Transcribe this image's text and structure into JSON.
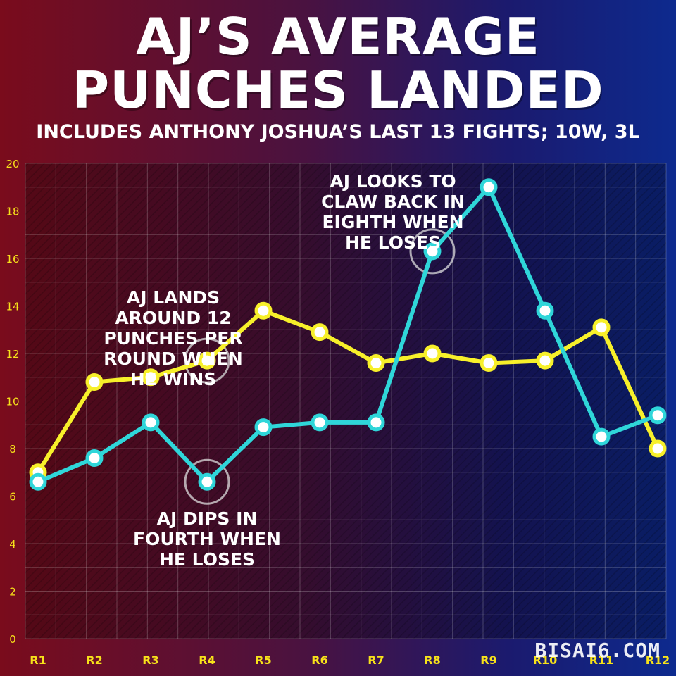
{
  "header": {
    "title_line1": "AJ’S AVERAGE",
    "title_line2": "PUNCHES LANDED",
    "subtitle": "INCLUDES ANTHONY JOSHUA’S LAST 13 FIGHTS; 10W, 3L"
  },
  "watermark": "BISAI6.COM",
  "colors": {
    "wins_line": "#f7f02a",
    "losses_line": "#2fd6d9",
    "text": "#ffffff",
    "tick_label": "#f7e21a"
  },
  "chart_data": {
    "type": "line",
    "categories": [
      "R1",
      "R2",
      "R3",
      "R4",
      "R5",
      "R6",
      "R7",
      "R8",
      "R9",
      "R10",
      "R11",
      "R12"
    ],
    "ylim": [
      0,
      20
    ],
    "yticks": [
      0,
      2,
      4,
      6,
      8,
      10,
      12,
      14,
      16,
      18,
      20
    ],
    "grid": true,
    "series": [
      {
        "key": "wins",
        "color": "#f7f02a",
        "values": [
          7.0,
          10.8,
          11.0,
          11.7,
          13.8,
          12.9,
          11.6,
          12.0,
          11.6,
          11.7,
          13.1,
          8.0
        ]
      },
      {
        "key": "losses",
        "color": "#2fd6d9",
        "values": [
          6.6,
          7.6,
          9.1,
          6.6,
          8.9,
          9.1,
          9.1,
          16.3,
          19.0,
          13.8,
          8.5,
          9.4
        ]
      }
    ],
    "highlights": [
      {
        "series": "wins",
        "index": 3
      },
      {
        "series": "losses",
        "index": 3
      },
      {
        "series": "losses",
        "index": 7
      }
    ],
    "annotations": [
      {
        "lines": [
          "AJ LANDS",
          "AROUND 12",
          "PUNCHES PER",
          "ROUND WHEN",
          "HE WINS"
        ],
        "anchor": {
          "cat": 2.4,
          "y": 14.1
        }
      },
      {
        "lines": [
          "AJ DIPS IN",
          "FOURTH WHEN",
          "HE LOSES"
        ],
        "anchor": {
          "cat": 3.0,
          "y": 4.8
        }
      },
      {
        "lines": [
          "AJ LOOKS TO",
          "CLAW BACK IN",
          "EIGHTH WHEN",
          "HE LOSES"
        ],
        "anchor": {
          "cat": 6.3,
          "y": 19.0
        }
      }
    ]
  }
}
